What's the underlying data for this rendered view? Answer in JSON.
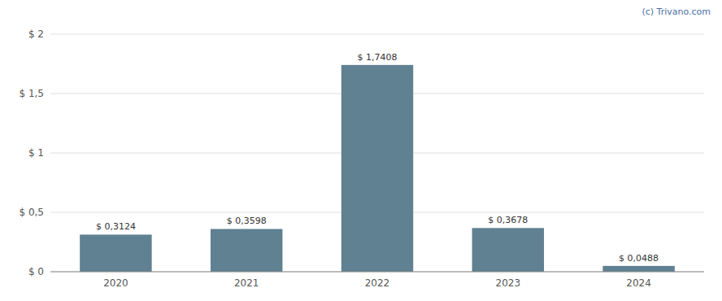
{
  "chart_data": {
    "type": "bar",
    "annotations": [
      "(c) Trivano.com"
    ],
    "categories": [
      "2020",
      "2021",
      "2022",
      "2023",
      "2024"
    ],
    "values": [
      0.3124,
      0.3598,
      1.7408,
      0.3678,
      0.0488
    ],
    "value_labels": [
      "$ 0,3124",
      "$ 0,3598",
      "$ 1,7408",
      "$ 0,3678",
      "$ 0,0488"
    ],
    "data_labels": true,
    "color": "#5f8191",
    "ylim": [
      0,
      2.0
    ],
    "yticks": [
      {
        "value": 0.0,
        "label": "$ 0"
      },
      {
        "value": 0.5,
        "label": "$ 0,5"
      },
      {
        "value": 1.0,
        "label": "$ 1"
      },
      {
        "value": 1.5,
        "label": "$ 1,5"
      },
      {
        "value": 2.0,
        "label": "$ 2"
      }
    ],
    "grid": true
  }
}
